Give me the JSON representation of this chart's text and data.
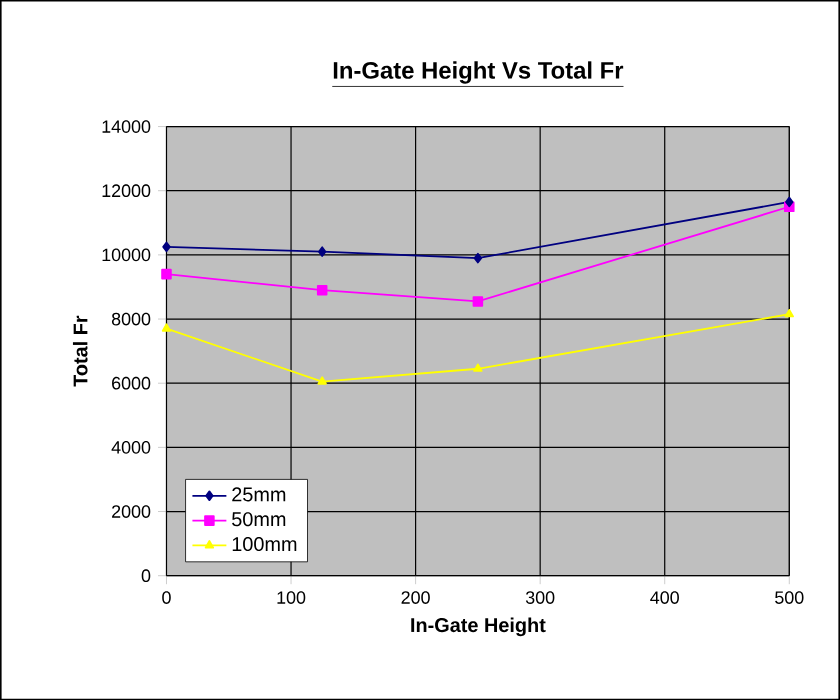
{
  "chart_data": {
    "type": "line",
    "title": "In-Gate Height Vs Total Fr",
    "xlabel": "In-Gate Height",
    "ylabel": "Total Fr",
    "x": [
      0,
      125,
      250,
      500
    ],
    "series": [
      {
        "name": "25mm",
        "color": "#000080",
        "marker": "diamond",
        "values": [
          10250,
          10100,
          9900,
          11650
        ]
      },
      {
        "name": "50mm",
        "color": "#ff00ff",
        "marker": "square",
        "values": [
          9400,
          8900,
          8550,
          11500
        ]
      },
      {
        "name": "100mm",
        "color": "#ffff00",
        "marker": "triangle",
        "values": [
          7700,
          6050,
          6450,
          8150
        ]
      }
    ],
    "xlim": [
      0,
      500
    ],
    "xticks": [
      0,
      100,
      200,
      300,
      400,
      500
    ],
    "ylim": [
      0,
      14000
    ],
    "yticks": [
      0,
      2000,
      4000,
      6000,
      8000,
      10000,
      12000,
      14000
    ],
    "grid": true,
    "legend": "bottom left"
  }
}
